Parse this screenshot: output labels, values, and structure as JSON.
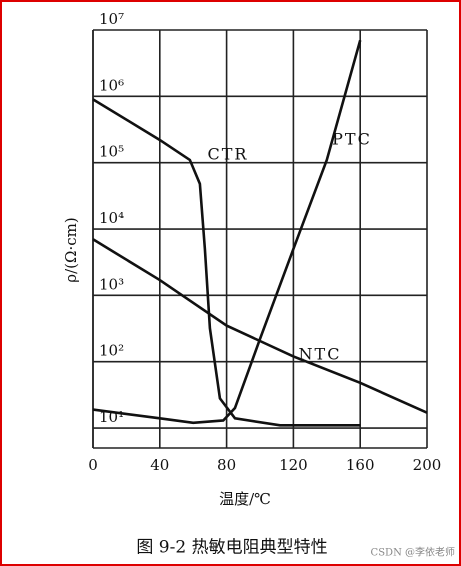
{
  "chart_data": {
    "type": "line",
    "log_y": true,
    "grid": true,
    "xlabel": "温度/℃",
    "ylabel": "ρ/(Ω·cm)",
    "caption": "图 9-2   热敏电阻典型特性",
    "watermark": "CSDN @李依老师",
    "xlim": [
      0,
      200
    ],
    "xticks": [
      0,
      40,
      80,
      120,
      160,
      200
    ],
    "ylim": [
      5,
      10000000
    ],
    "yticks": [
      {
        "value": 10,
        "label": "10¹"
      },
      {
        "value": 100,
        "label": "10²"
      },
      {
        "value": 1000,
        "label": "10³"
      },
      {
        "value": 10000,
        "label": "10⁴"
      },
      {
        "value": 100000,
        "label": "10⁵"
      },
      {
        "value": 1000000,
        "label": "10⁶"
      },
      {
        "value": 10000000,
        "label": "10⁷"
      }
    ],
    "series": [
      {
        "name": "NTC",
        "color": "#111111",
        "x": [
          0,
          40,
          80,
          120,
          160,
          200
        ],
        "values": [
          7000,
          1700,
          350,
          120,
          48,
          17
        ]
      },
      {
        "name": "PTC",
        "color": "#111111",
        "x": [
          0,
          40,
          60,
          78,
          85,
          100,
          120,
          140,
          160
        ],
        "values": [
          19,
          14,
          12,
          13,
          20,
          220,
          5000,
          110000,
          7000000
        ]
      },
      {
        "name": "CTR",
        "color": "#111111",
        "x": [
          0,
          40,
          58,
          64,
          67,
          70,
          76,
          85,
          112,
          160
        ],
        "values": [
          900000,
          220000,
          110000,
          48000,
          5000,
          320,
          28,
          14,
          11,
          11
        ]
      }
    ]
  }
}
